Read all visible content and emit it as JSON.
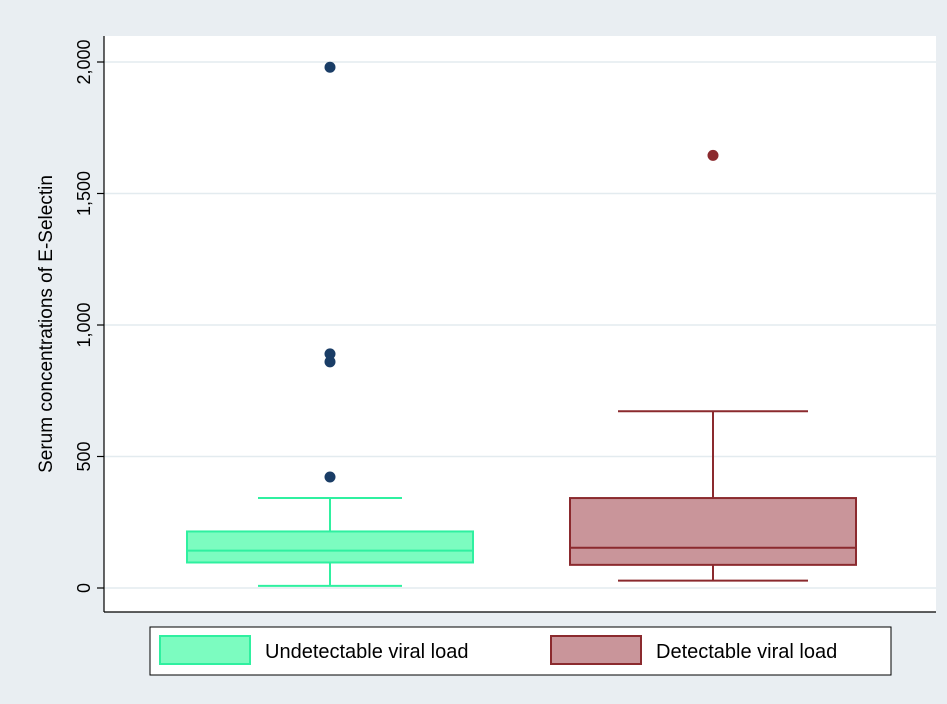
{
  "chart_data": {
    "type": "box",
    "title": "",
    "ylabel": "Serum concentrations of E-Selectin",
    "xlabel": "",
    "ylim": [
      -90,
      2100
    ],
    "yticks": [
      0,
      500,
      1000,
      1500,
      2000
    ],
    "ytick_labels": [
      "0",
      "500",
      "1,000",
      "1,500",
      "2,000"
    ],
    "grid": true,
    "legend_position": "bottom",
    "series": [
      {
        "name": "Undetectable viral load",
        "color": "#2ff0a0",
        "fill": "#7cfcc0",
        "whisker_low": 8,
        "q1": 97,
        "median": 142,
        "q3": 215,
        "whisker_high": 342,
        "outliers": [
          422,
          860,
          890,
          1980
        ],
        "outlier_color": "#1a3d66"
      },
      {
        "name": "Detectable viral load",
        "color": "#8b2a2e",
        "fill": "#c9959a",
        "whisker_low": 28,
        "q1": 88,
        "median": 153,
        "q3": 342,
        "whisker_high": 672,
        "outliers": [
          1645
        ],
        "outlier_color": "#8b2a2e"
      }
    ]
  }
}
